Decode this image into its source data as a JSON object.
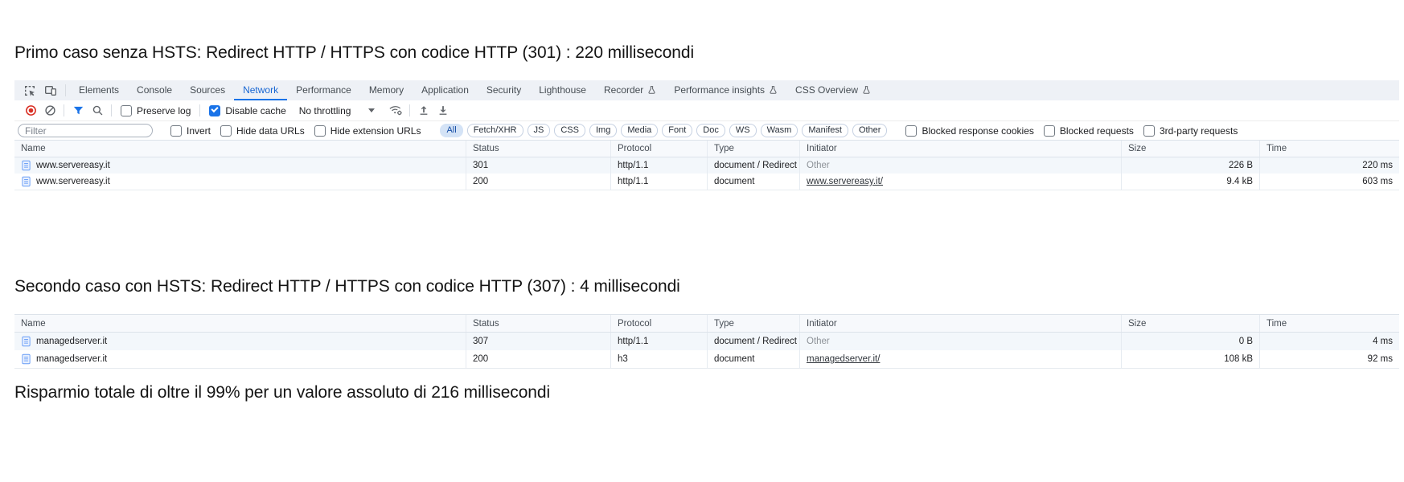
{
  "titles": {
    "first_case": "Primo caso senza HSTS: Redirect HTTP / HTTPS con codice HTTP (301) : 220 millisecondi",
    "second_case": "Secondo caso con HSTS: Redirect HTTP / HTTPS con codice HTTP (307) : 4 millisecondi",
    "summary": "Risparmio totale di oltre il 99% per un valore assoluto di 216 millisecondi"
  },
  "devtools": {
    "tabs": [
      {
        "label": "Elements"
      },
      {
        "label": "Console"
      },
      {
        "label": "Sources"
      },
      {
        "label": "Network",
        "active": true
      },
      {
        "label": "Performance"
      },
      {
        "label": "Memory"
      },
      {
        "label": "Application"
      },
      {
        "label": "Security"
      },
      {
        "label": "Lighthouse"
      },
      {
        "label": "Recorder",
        "flask": true
      },
      {
        "label": "Performance insights",
        "flask": true
      },
      {
        "label": "CSS Overview",
        "flask": true
      }
    ],
    "toolbar": {
      "preserve_log_label": "Preserve log",
      "preserve_log_checked": false,
      "disable_cache_label": "Disable cache",
      "disable_cache_checked": true,
      "throttling_value": "No throttling"
    },
    "filters": {
      "placeholder": "Filter",
      "checkboxes": [
        "Invert",
        "Hide data URLs",
        "Hide extension URLs"
      ],
      "pills": [
        {
          "label": "All",
          "active": true
        },
        {
          "label": "Fetch/XHR"
        },
        {
          "label": "JS"
        },
        {
          "label": "CSS"
        },
        {
          "label": "Img"
        },
        {
          "label": "Media"
        },
        {
          "label": "Font"
        },
        {
          "label": "Doc"
        },
        {
          "label": "WS"
        },
        {
          "label": "Wasm"
        },
        {
          "label": "Manifest"
        },
        {
          "label": "Other"
        }
      ],
      "right_checkboxes": [
        "Blocked response cookies",
        "Blocked requests",
        "3rd-party requests"
      ]
    }
  },
  "columns": [
    "Name",
    "Status",
    "Protocol",
    "Type",
    "Initiator",
    "Size",
    "Time"
  ],
  "table1": {
    "rows": [
      {
        "name": "www.servereasy.it",
        "status": "301",
        "protocol": "http/1.1",
        "type": "document / Redirect",
        "initiator": "Other",
        "initiator_is_link": false,
        "size": "226 B",
        "time": "220 ms"
      },
      {
        "name": "www.servereasy.it",
        "status": "200",
        "protocol": "http/1.1",
        "type": "document",
        "initiator": "www.servereasy.it/",
        "initiator_is_link": true,
        "size": "9.4 kB",
        "time": "603 ms"
      }
    ]
  },
  "table2": {
    "rows": [
      {
        "name": "managedserver.it",
        "status": "307",
        "protocol": "http/1.1",
        "type": "document / Redirect",
        "initiator": "Other",
        "initiator_is_link": false,
        "size": "0 B",
        "time": "4 ms"
      },
      {
        "name": "managedserver.it",
        "status": "200",
        "protocol": "h3",
        "type": "document",
        "initiator": "managedserver.it/",
        "initiator_is_link": true,
        "size": "108 kB",
        "time": "92 ms"
      }
    ]
  },
  "colors": {
    "accent": "#1a73e8",
    "active_tab": "#1967d2",
    "record_red": "#d93025",
    "row_stripe": "#f3f7fb",
    "tabbar_bg": "#eef1f6"
  }
}
